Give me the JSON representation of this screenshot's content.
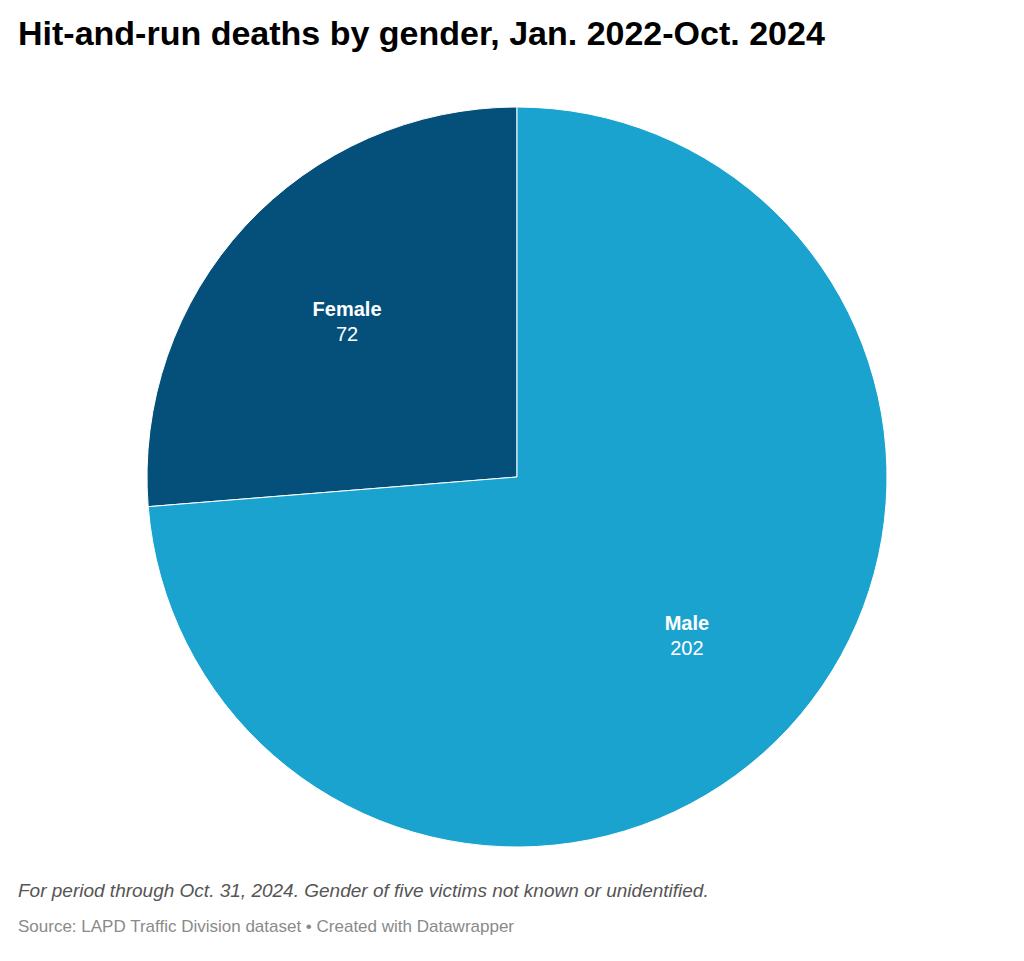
{
  "chart_data": {
    "type": "pie",
    "title": "Hit-and-run deaths by gender, Jan. 2022-Oct. 2024",
    "categories": [
      "Female",
      "Male"
    ],
    "values": [
      72,
      202
    ],
    "colors": [
      "#04507a",
      "#1ba3cf"
    ],
    "data_labels": true,
    "annotations": [
      "For period through Oct. 31, 2024. Gender of five victims not known or unidentified.",
      "Source: LAPD Traffic Division dataset • Created with Datawrapper"
    ]
  }
}
